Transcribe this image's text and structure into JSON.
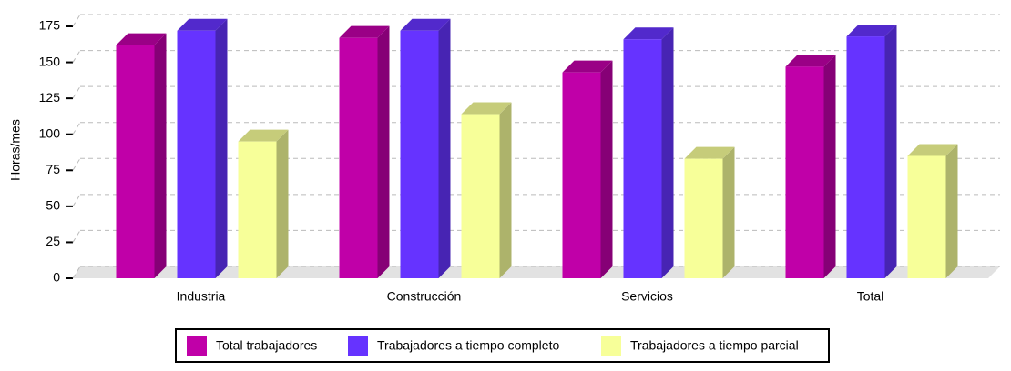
{
  "chart_data": {
    "type": "bar3d",
    "y_label": "Horas/mes",
    "categories": [
      "Industria",
      "Construcción",
      "Servicios",
      "Total"
    ],
    "series": [
      {
        "name": "Total trabajadores",
        "color": "#c000a8",
        "values": [
          162,
          167,
          143,
          147
        ]
      },
      {
        "name": "Trabajadores a tiempo completo",
        "color": "#6633ff",
        "values": [
          172,
          172,
          166,
          168
        ]
      },
      {
        "name": "Trabajadores a tiempo parcial",
        "color": "#f7ff99",
        "values": [
          95,
          114,
          83,
          85
        ]
      }
    ],
    "ylim": [
      0,
      175
    ],
    "yticks": [
      0,
      25,
      50,
      75,
      100,
      125,
      150,
      175
    ],
    "grid": true,
    "legend": "bottom"
  }
}
